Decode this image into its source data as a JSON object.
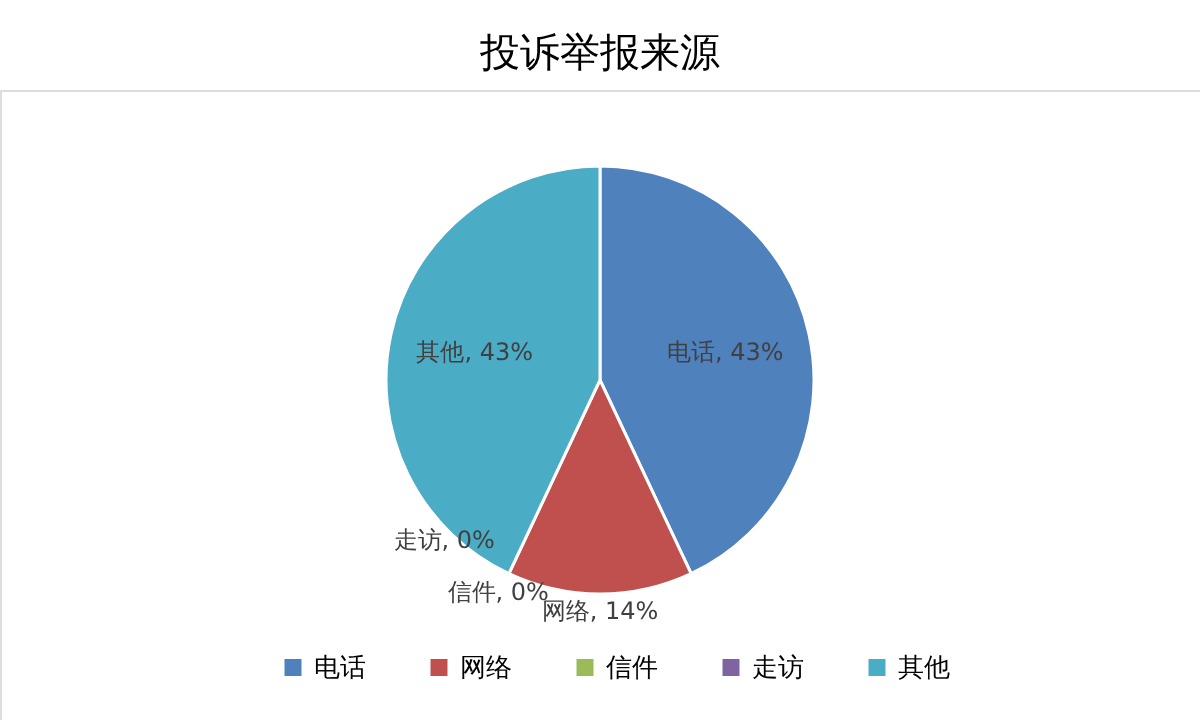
{
  "chart_data": {
    "type": "pie",
    "title": "投诉举报来源",
    "categories": [
      "电话",
      "网络",
      "信件",
      "走访",
      "其他"
    ],
    "values": [
      43,
      14,
      0,
      0,
      43
    ],
    "colors": [
      "#4f81bd",
      "#c0504d",
      "#9bbb59",
      "#8064a2",
      "#4bacc6"
    ],
    "value_labels": [
      "电话, 43%",
      "网络, 14%",
      "信件, 0%",
      "走访, 0%",
      "其他, 43%"
    ],
    "legend": "bottom"
  }
}
